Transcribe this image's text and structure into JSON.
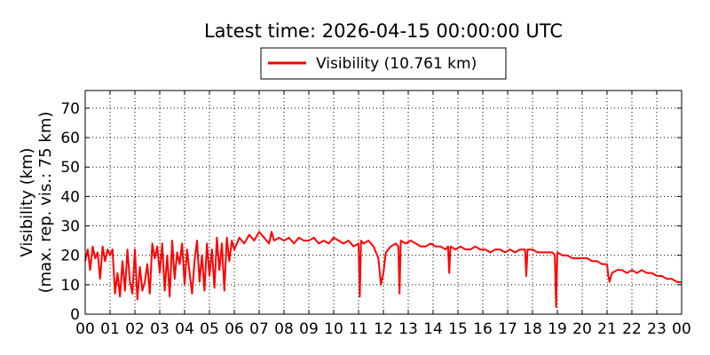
{
  "chart_data": {
    "type": "line",
    "title": "Latest time: 2026-04-15 00:00:00 UTC",
    "ylabel": "Visibility (km)",
    "ylabel2": "(max. rep. vis.: 75 km)",
    "xlabel": "",
    "ylim": [
      0,
      76
    ],
    "xlim": [
      0,
      24
    ],
    "grid": true,
    "legend_position": "top-center",
    "y_ticks": [
      "0",
      "10",
      "20",
      "30",
      "40",
      "50",
      "60",
      "70"
    ],
    "x_ticks": [
      "00",
      "01",
      "02",
      "03",
      "04",
      "05",
      "06",
      "07",
      "08",
      "09",
      "10",
      "11",
      "12",
      "13",
      "14",
      "15",
      "16",
      "17",
      "18",
      "19",
      "20",
      "21",
      "22",
      "23",
      "00"
    ],
    "series": [
      {
        "name": "Visibility (10.761 km)",
        "color": "#ff0000",
        "x": [
          0.0,
          0.1,
          0.2,
          0.3,
          0.4,
          0.5,
          0.6,
          0.7,
          0.8,
          0.9,
          1.0,
          1.1,
          1.2,
          1.3,
          1.4,
          1.5,
          1.6,
          1.7,
          1.8,
          1.9,
          2.0,
          2.1,
          2.2,
          2.3,
          2.4,
          2.5,
          2.6,
          2.7,
          2.8,
          2.9,
          3.0,
          3.1,
          3.2,
          3.3,
          3.4,
          3.5,
          3.6,
          3.7,
          3.8,
          3.9,
          4.0,
          4.1,
          4.2,
          4.3,
          4.4,
          4.5,
          4.6,
          4.7,
          4.8,
          4.9,
          5.0,
          5.1,
          5.2,
          5.3,
          5.4,
          5.5,
          5.6,
          5.7,
          5.8,
          5.9,
          6.0,
          6.2,
          6.4,
          6.6,
          6.8,
          7.0,
          7.2,
          7.4,
          7.5,
          7.6,
          7.8,
          8.0,
          8.2,
          8.4,
          8.6,
          8.8,
          9.0,
          9.2,
          9.4,
          9.6,
          9.8,
          10.0,
          10.2,
          10.4,
          10.6,
          10.8,
          11.0,
          11.05,
          11.1,
          11.2,
          11.4,
          11.6,
          11.8,
          11.9,
          12.0,
          12.1,
          12.3,
          12.5,
          12.6,
          12.65,
          12.7,
          12.9,
          13.1,
          13.3,
          13.5,
          13.7,
          13.9,
          14.1,
          14.3,
          14.5,
          14.6,
          14.65,
          14.7,
          14.9,
          15.1,
          15.3,
          15.5,
          15.7,
          15.9,
          16.1,
          16.3,
          16.5,
          16.7,
          16.9,
          17.1,
          17.3,
          17.5,
          17.7,
          17.75,
          17.8,
          18.0,
          18.2,
          18.4,
          18.6,
          18.8,
          18.9,
          18.95,
          19.0,
          19.2,
          19.4,
          19.6,
          19.8,
          20.0,
          20.2,
          20.4,
          20.6,
          20.8,
          21.0,
          21.05,
          21.1,
          21.2,
          21.4,
          21.6,
          21.8,
          22.0,
          22.2,
          22.4,
          22.6,
          22.8,
          23.0,
          23.2,
          23.4,
          23.6,
          23.8,
          24.0
        ],
        "values": [
          18,
          22,
          15,
          23,
          19,
          21,
          12,
          23,
          18,
          22,
          20,
          22,
          7,
          14,
          6,
          18,
          8,
          22,
          11,
          7,
          22,
          5,
          16,
          8,
          11,
          17,
          7,
          24,
          19,
          23,
          14,
          24,
          8,
          20,
          6,
          25,
          12,
          21,
          17,
          24,
          10,
          22,
          14,
          7,
          18,
          25,
          11,
          20,
          8,
          24,
          13,
          22,
          9,
          26,
          15,
          24,
          8,
          26,
          18,
          25,
          22,
          26,
          24,
          27,
          25,
          28,
          26,
          24,
          28,
          25,
          26,
          25,
          26,
          24,
          26,
          25,
          25,
          26,
          24,
          25,
          24,
          26,
          25,
          24,
          25,
          23,
          24,
          6,
          25,
          24,
          25,
          23,
          19,
          10,
          14,
          21,
          23,
          24,
          23,
          7,
          25,
          24,
          25,
          24,
          23,
          23,
          24,
          23,
          23,
          22,
          23,
          14,
          23,
          22,
          23,
          22,
          22,
          23,
          22,
          22,
          21,
          22,
          22,
          21,
          22,
          21,
          22,
          22,
          13,
          22,
          22,
          21,
          21,
          21,
          21,
          20,
          2.5,
          21,
          20,
          20,
          19,
          19,
          19,
          19,
          18,
          18,
          17,
          17,
          13,
          11,
          14,
          15,
          15,
          14,
          15,
          14,
          15,
          14,
          14,
          13,
          13,
          12,
          12,
          11,
          10.761
        ]
      }
    ]
  }
}
